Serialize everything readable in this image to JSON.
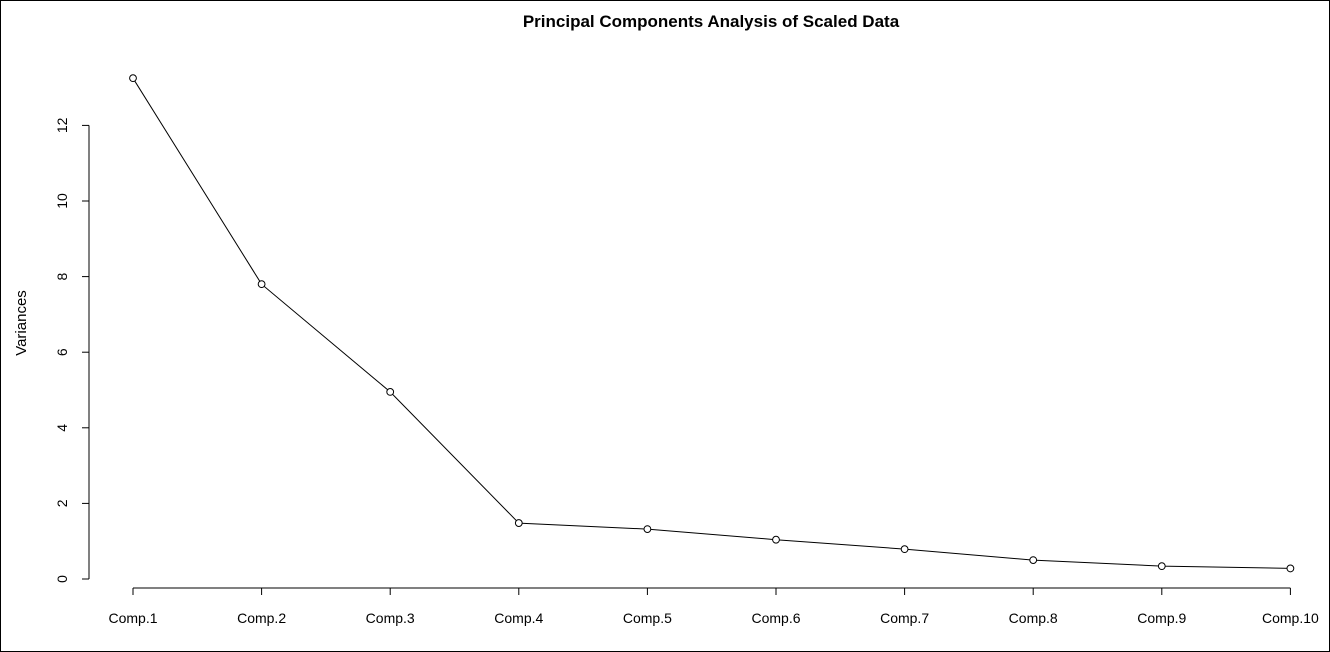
{
  "chart_data": {
    "type": "line",
    "title": "Principal Components Analysis of Scaled Data",
    "xlabel": "",
    "ylabel": "Variances",
    "categories": [
      "Comp.1",
      "Comp.2",
      "Comp.3",
      "Comp.4",
      "Comp.5",
      "Comp.6",
      "Comp.7",
      "Comp.8",
      "Comp.9",
      "Comp.10"
    ],
    "values": [
      13.25,
      7.8,
      4.95,
      1.48,
      1.32,
      1.04,
      0.79,
      0.5,
      0.34,
      0.28
    ],
    "ylim": [
      0,
      13.25
    ],
    "yticks": [
      "0",
      "2",
      "4",
      "6",
      "8",
      "10",
      "12"
    ],
    "grid": false,
    "legend": "none",
    "colors": {
      "line": "#000000",
      "marker_fill": "#ffffff",
      "marker_stroke": "#000000",
      "background": "#ffffff"
    }
  }
}
